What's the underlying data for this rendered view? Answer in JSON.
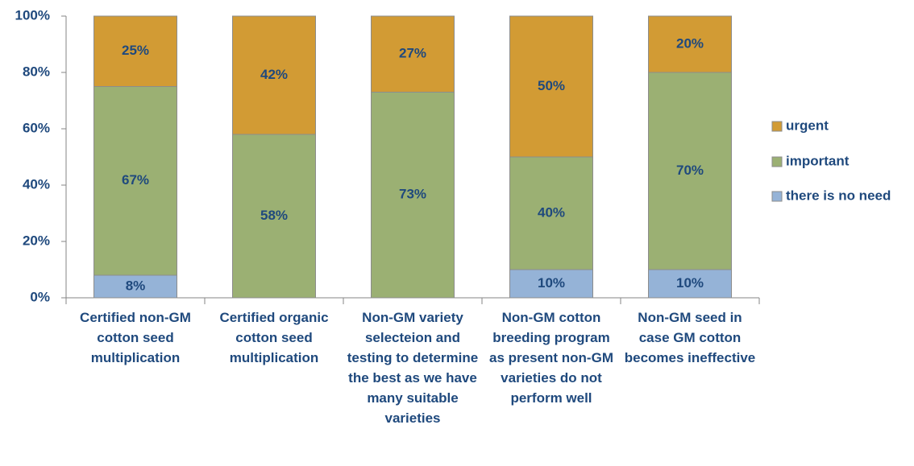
{
  "chart_data": {
    "type": "stacked_bar",
    "categories": [
      "Certified non-GM cotton seed multiplication",
      "Certified organic cotton seed multiplication",
      "Non-GM variety selecteion and testing to determine the best as we have many suitable varieties",
      "Non-GM cotton breeding program as present non-GM varieties do not perform well",
      "Non-GM seed in case GM cotton becomes ineffective"
    ],
    "series": [
      {
        "name": "there is no need",
        "color": "#95b3d7",
        "values": [
          8,
          0,
          0,
          10,
          10
        ],
        "value_labels": [
          "8%",
          null,
          null,
          "10%",
          "10%"
        ]
      },
      {
        "name": "important",
        "color": "#9bb073",
        "values": [
          67,
          58,
          73,
          40,
          70
        ],
        "value_labels": [
          "67%",
          "58%",
          "73%",
          "40%",
          "70%"
        ]
      },
      {
        "name": "urgent",
        "color": "#d29b34",
        "values": [
          25,
          42,
          27,
          50,
          20
        ],
        "value_labels": [
          "25%",
          "42%",
          "27%",
          "50%",
          "20%"
        ]
      }
    ],
    "ylim": [
      0,
      100
    ],
    "yticks": [
      {
        "value": 0,
        "label": "0%"
      },
      {
        "value": 20,
        "label": "20%"
      },
      {
        "value": 40,
        "label": "40%"
      },
      {
        "value": 60,
        "label": "60%"
      },
      {
        "value": 80,
        "label": "80%"
      },
      {
        "value": 100,
        "label": "100%"
      }
    ],
    "legend": "right"
  }
}
